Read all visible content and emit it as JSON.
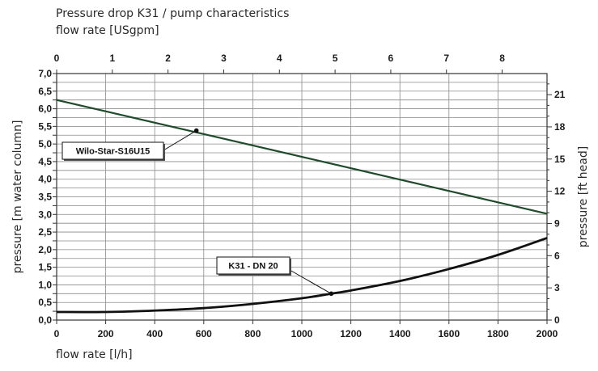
{
  "chart_data": {
    "type": "line",
    "title": "Pressure drop K31 / pump characteristics",
    "top_axis": {
      "label": "flow rate [USgpm]",
      "ticks": [
        0,
        1,
        2,
        3,
        4,
        5,
        6,
        7,
        8
      ],
      "gpm_to_lph": 227.12
    },
    "xlabel": "flow rate [l/h]",
    "xlim": [
      0,
      2000
    ],
    "xticks": [
      0,
      200,
      400,
      600,
      800,
      1000,
      1200,
      1400,
      1600,
      1800,
      2000
    ],
    "ylabel": "pressure [m water column]",
    "ylim": [
      0,
      7.0
    ],
    "yticks": [
      "0,0",
      "0,5",
      "1,0",
      "1,5",
      "2,0",
      "2,5",
      "3,0",
      "3,5",
      "4,0",
      "4,5",
      "5,0",
      "5,5",
      "6,0",
      "6,5",
      "7,0"
    ],
    "right_axis": {
      "label": "pressure [ft head]",
      "ticks": [
        0,
        3,
        6,
        9,
        12,
        15,
        18,
        21
      ],
      "ft_per_m": 3.28084
    },
    "grid": true,
    "series": [
      {
        "name": "Wilo-Star-S16U15",
        "x": [
          0,
          2000
        ],
        "y": [
          6.25,
          3.02
        ],
        "color": "#1f4a2c",
        "marker": {
          "x": 570,
          "y": 5.38
        }
      },
      {
        "name": "K31 - DN 20",
        "x": [
          0,
          200,
          400,
          600,
          800,
          1000,
          1120,
          1200,
          1400,
          1600,
          1800,
          2000
        ],
        "y": [
          0.23,
          0.23,
          0.27,
          0.34,
          0.46,
          0.62,
          0.75,
          0.84,
          1.11,
          1.45,
          1.85,
          2.33
        ],
        "color": "#111111",
        "marker": {
          "x": 1120,
          "y": 0.75
        }
      }
    ]
  }
}
